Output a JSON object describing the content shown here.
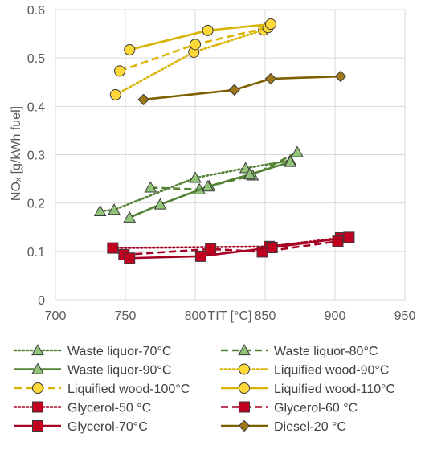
{
  "chart_data": {
    "type": "line",
    "title": "",
    "xlabel": "TIT [°C]",
    "ylabel": "NOₓ [g/kWh fuel]",
    "xlim": [
      700,
      950
    ],
    "ylim": [
      0,
      0.6
    ],
    "x_ticks": [
      "700",
      "750",
      "800",
      "850",
      "900",
      "950"
    ],
    "y_ticks": [
      "0",
      "0.1",
      "0.2",
      "0.3",
      "0.4",
      "0.5",
      "0.6"
    ],
    "grid": true,
    "legend_position": "bottom",
    "series": [
      {
        "name": "Waste liquor-70°C",
        "marker": "triangle",
        "dash": "dotted",
        "color": "#548235",
        "fill": "#92C47A",
        "points": [
          [
            732,
            0.183
          ],
          [
            742,
            0.186
          ],
          [
            800,
            0.252
          ],
          [
            836,
            0.272
          ],
          [
            868,
            0.288
          ]
        ]
      },
      {
        "name": "Waste liquor-80°C",
        "marker": "triangle",
        "dash": "dashed",
        "color": "#548235",
        "fill": "#92C47A",
        "points": [
          [
            768,
            0.232
          ],
          [
            803,
            0.228
          ],
          [
            810,
            0.235
          ],
          [
            841,
            0.257
          ],
          [
            873,
            0.305
          ]
        ]
      },
      {
        "name": "Waste liquor-90°C",
        "marker": "triangle",
        "dash": "solid",
        "color": "#548235",
        "fill": "#92C47A",
        "points": [
          [
            753,
            0.17
          ],
          [
            775,
            0.197
          ],
          [
            809,
            0.234
          ],
          [
            839,
            0.259
          ],
          [
            868,
            0.285
          ]
        ]
      },
      {
        "name": "Liquified wood-90°C",
        "marker": "circle",
        "dash": "dotted",
        "color": "#D9B300",
        "fill": "#FFD83A",
        "points": [
          [
            743,
            0.424
          ],
          [
            799,
            0.512
          ],
          [
            849,
            0.558
          ]
        ]
      },
      {
        "name": "Liquified wood-100°C",
        "marker": "circle",
        "dash": "dashed",
        "color": "#D9B300",
        "fill": "#FFD83A",
        "points": [
          [
            746,
            0.473
          ],
          [
            800,
            0.528
          ],
          [
            852,
            0.563
          ]
        ]
      },
      {
        "name": "Liquified wood-110°C",
        "marker": "circle",
        "dash": "solid",
        "color": "#D9B300",
        "fill": "#FFD83A",
        "points": [
          [
            753,
            0.517
          ],
          [
            809,
            0.557
          ],
          [
            854,
            0.57
          ]
        ]
      },
      {
        "name": "Glycerol-50 °C",
        "marker": "square",
        "dash": "dotted",
        "color": "#A50021",
        "fill": "#C0001E",
        "points": [
          [
            741,
            0.107
          ],
          [
            853,
            0.11
          ],
          [
            904,
            0.128
          ]
        ]
      },
      {
        "name": "Glycerol-60 °C",
        "marker": "square",
        "dash": "dashed",
        "color": "#A50021",
        "fill": "#C0001E",
        "points": [
          [
            749,
            0.093
          ],
          [
            811,
            0.105
          ],
          [
            848,
            0.099
          ],
          [
            902,
            0.121
          ]
        ]
      },
      {
        "name": "Glycerol-70°C",
        "marker": "square",
        "dash": "solid",
        "color": "#A50021",
        "fill": "#C0001E",
        "points": [
          [
            753,
            0.086
          ],
          [
            804,
            0.09
          ],
          [
            855,
            0.108
          ],
          [
            910,
            0.129
          ]
        ]
      },
      {
        "name": "Diesel-20 °C",
        "marker": "diamond",
        "dash": "solid",
        "color": "#7F6000",
        "fill": "#A07818",
        "points": [
          [
            763,
            0.414
          ],
          [
            828,
            0.434
          ],
          [
            854,
            0.457
          ],
          [
            904,
            0.462
          ]
        ]
      }
    ]
  }
}
